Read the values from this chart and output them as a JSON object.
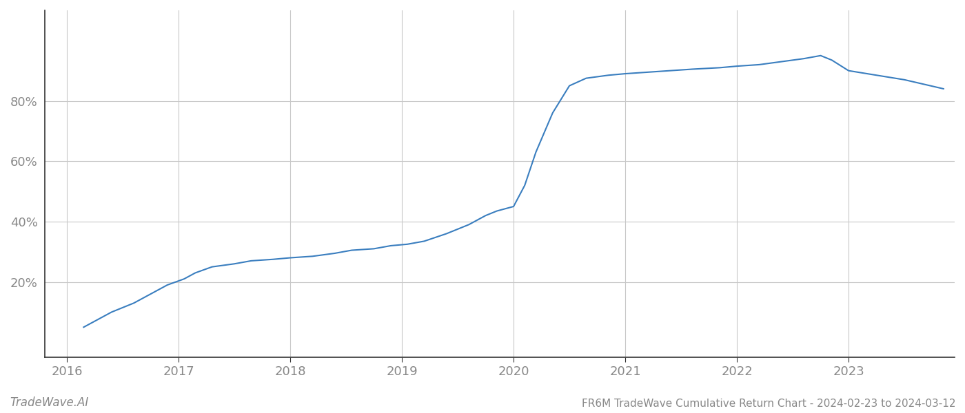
{
  "title": "FR6M TradeWave Cumulative Return Chart - 2024-02-23 to 2024-03-12",
  "watermark": "TradeWave.AI",
  "line_color": "#3a7ebf",
  "background_color": "#ffffff",
  "grid_color": "#c8c8c8",
  "x_values": [
    2016.15,
    2016.25,
    2016.4,
    2016.6,
    2016.75,
    2016.9,
    2017.05,
    2017.15,
    2017.3,
    2017.5,
    2017.65,
    2017.85,
    2018.0,
    2018.2,
    2018.4,
    2018.55,
    2018.75,
    2018.9,
    2019.05,
    2019.2,
    2019.4,
    2019.6,
    2019.75,
    2019.85,
    2020.0,
    2020.1,
    2020.2,
    2020.35,
    2020.5,
    2020.65,
    2020.85,
    2021.0,
    2021.2,
    2021.4,
    2021.6,
    2021.85,
    2022.0,
    2022.2,
    2022.4,
    2022.6,
    2022.75,
    2022.85,
    2023.0,
    2023.5,
    2023.85
  ],
  "y_values": [
    5,
    7,
    10,
    13,
    16,
    19,
    21,
    23,
    25,
    26,
    27,
    27.5,
    28,
    28.5,
    29.5,
    30.5,
    31,
    32,
    32.5,
    33.5,
    36,
    39,
    42,
    43.5,
    45,
    52,
    63,
    76,
    85,
    87.5,
    88.5,
    89,
    89.5,
    90,
    90.5,
    91,
    91.5,
    92,
    93,
    94,
    95,
    93.5,
    90,
    87,
    84
  ],
  "xlim": [
    2015.8,
    2023.95
  ],
  "ylim": [
    -5,
    110
  ],
  "yticks": [
    20,
    40,
    60,
    80
  ],
  "ytick_labels": [
    "20%",
    "40%",
    "60%",
    "80%"
  ],
  "xticks": [
    2016,
    2017,
    2018,
    2019,
    2020,
    2021,
    2022,
    2023
  ],
  "xtick_labels": [
    "2016",
    "2017",
    "2018",
    "2019",
    "2020",
    "2021",
    "2022",
    "2023"
  ],
  "line_width": 1.5,
  "title_fontsize": 11,
  "tick_fontsize": 13,
  "watermark_fontsize": 12,
  "tick_color": "#888888"
}
